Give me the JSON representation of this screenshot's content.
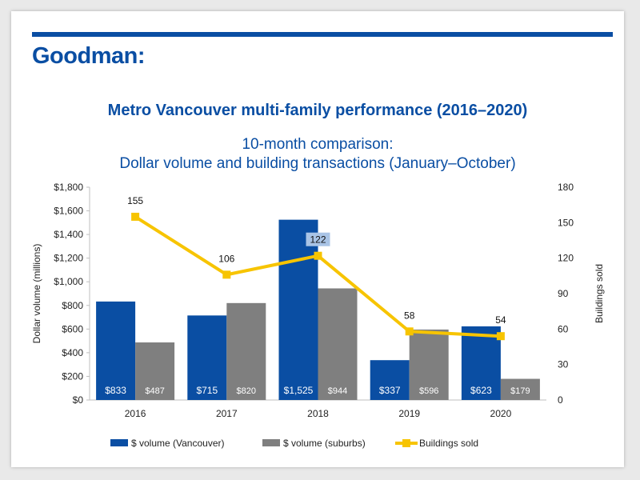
{
  "brand": "Goodman:",
  "title": "Metro Vancouver multi-family performance (2016–2020)",
  "subtitle_line1": "10-month comparison:",
  "subtitle_line2": "Dollar volume and building transactions (January–October)",
  "colors": {
    "vancouver": "#0a4ea3",
    "suburbs": "#7f7f7f",
    "buildings": "#f7c400",
    "brand": "#0a4ea3"
  },
  "chart_data": {
    "type": "bar",
    "categories": [
      "2016",
      "2017",
      "2018",
      "2019",
      "2020"
    ],
    "series": [
      {
        "name": "$ volume (Vancouver)",
        "axis": "left",
        "values": [
          833,
          715,
          1525,
          337,
          623
        ],
        "labels": [
          "$833",
          "$715",
          "$1,525",
          "$337",
          "$623"
        ]
      },
      {
        "name": "$ volume (suburbs)",
        "axis": "left",
        "values": [
          487,
          820,
          944,
          596,
          179
        ],
        "labels": [
          "$487",
          "$820",
          "$944",
          "$596",
          "$179"
        ]
      },
      {
        "name": "Buildings sold",
        "axis": "right",
        "type": "line",
        "values": [
          155,
          106,
          122,
          58,
          54
        ],
        "labels": [
          "155",
          "106",
          "122",
          "58",
          "54"
        ]
      }
    ],
    "ylabel": "Dollar volume (millions)",
    "y2label": "Buildings sold",
    "ylim": [
      0,
      1800
    ],
    "y2lim": [
      0,
      180
    ],
    "yticks": [
      "$0",
      "$200",
      "$400",
      "$600",
      "$800",
      "$1,000",
      "$1,200",
      "$1,400",
      "$1,600",
      "$1,800"
    ],
    "y2ticks": [
      "0",
      "30",
      "60",
      "90",
      "120",
      "150",
      "180"
    ],
    "legend_position": "bottom"
  }
}
